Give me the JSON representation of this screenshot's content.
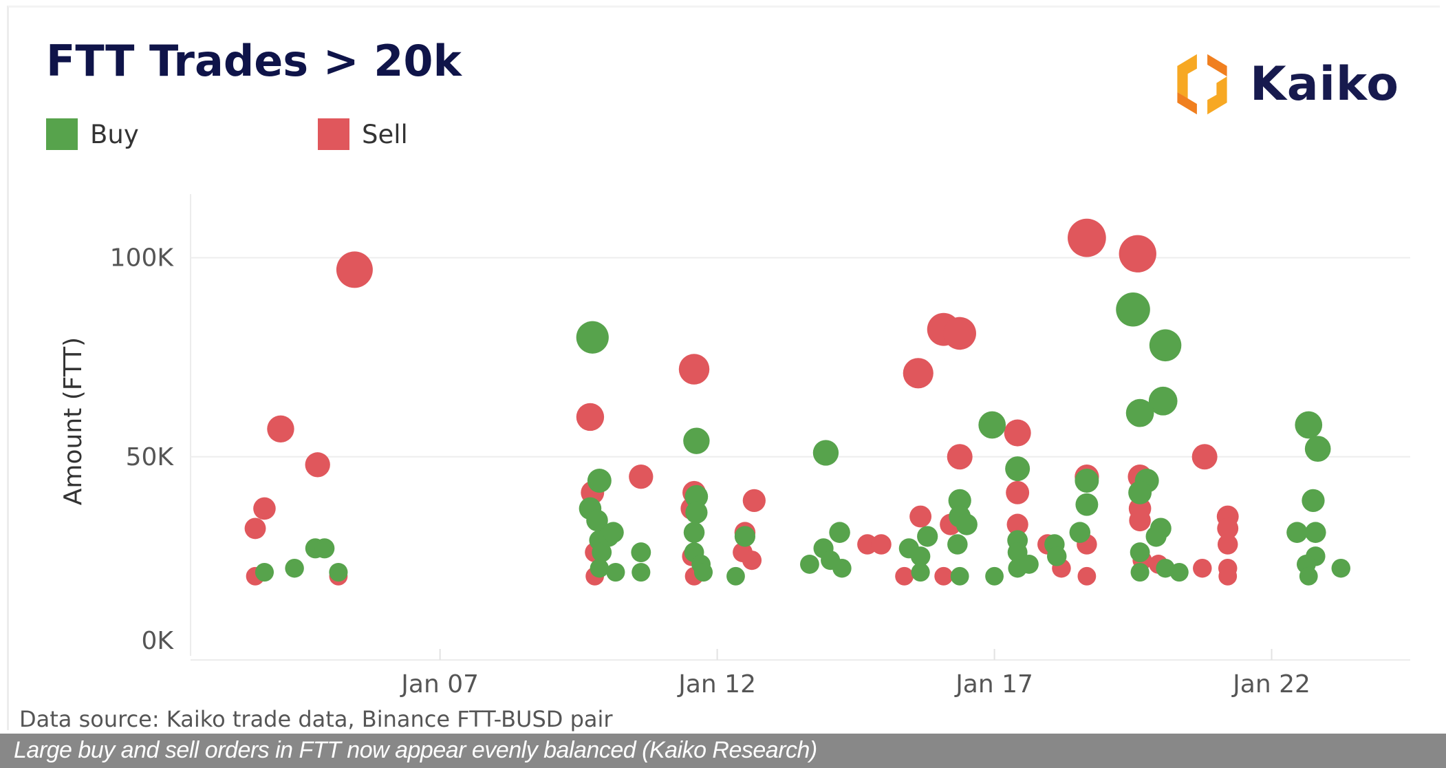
{
  "chart_data": {
    "type": "scatter",
    "title": "FTT Trades > 20k",
    "ylabel": "Amount (FTT)",
    "xlabel": "",
    "xlim": [
      "Jan 02 12:00",
      "Jan 24 12:00"
    ],
    "ylim": [
      0,
      116000
    ],
    "yticks": [
      {
        "value": 0,
        "label": "0K"
      },
      {
        "value": 50000,
        "label": "50K"
      },
      {
        "value": 100000,
        "label": "100K"
      }
    ],
    "xticks": [
      {
        "value": "Jan 07 00:00",
        "label": "Jan 07"
      },
      {
        "value": "Jan 12 00:00",
        "label": "Jan 12"
      },
      {
        "value": "Jan 17 00:00",
        "label": "Jan 17"
      },
      {
        "value": "Jan 22 00:00",
        "label": "Jan 22"
      }
    ],
    "grid": "horizontal",
    "legend_position": "top-left",
    "bubble_size": "scaled by amount",
    "series": [
      {
        "name": "Sell",
        "color": "#e0575c",
        "points": [
          [
            "Jan 05 11:00",
            97000
          ],
          [
            "Jan 04 03:00",
            57000
          ],
          [
            "Jan 04 19:00",
            48000
          ],
          [
            "Jan 03 20:00",
            37000
          ],
          [
            "Jan 03 16:00",
            32000
          ],
          [
            "Jan 03 16:00",
            20000
          ],
          [
            "Jan 05 04:00",
            20000
          ],
          [
            "Jan 09 17:00",
            60000
          ],
          [
            "Jan 09 18:00",
            41000
          ],
          [
            "Jan 09 19:00",
            26000
          ],
          [
            "Jan 09 19:00",
            20000
          ],
          [
            "Jan 10 15:00",
            45000
          ],
          [
            "Jan 11 14:00",
            72000
          ],
          [
            "Jan 11 14:00",
            41000
          ],
          [
            "Jan 11 13:00",
            37000
          ],
          [
            "Jan 11 13:00",
            25000
          ],
          [
            "Jan 11 14:00",
            20000
          ],
          [
            "Jan 12 16:00",
            39000
          ],
          [
            "Jan 12 12:00",
            31000
          ],
          [
            "Jan 12 11:00",
            26000
          ],
          [
            "Jan 12 15:00",
            24000
          ],
          [
            "Jan 14 17:00",
            28000
          ],
          [
            "Jan 14 23:00",
            28000
          ],
          [
            "Jan 15 15:00",
            71000
          ],
          [
            "Jan 16 02:00",
            82000
          ],
          [
            "Jan 16 09:00",
            81000
          ],
          [
            "Jan 16 09:00",
            50000
          ],
          [
            "Jan 15 16:00",
            35000
          ],
          [
            "Jan 16 05:00",
            33000
          ],
          [
            "Jan 15 09:00",
            20000
          ],
          [
            "Jan 16 02:00",
            20000
          ],
          [
            "Jan 17 10:00",
            56000
          ],
          [
            "Jan 17 10:00",
            41000
          ],
          [
            "Jan 17 10:00",
            33000
          ],
          [
            "Jan 17 23:00",
            28000
          ],
          [
            "Jan 18 05:00",
            22000
          ],
          [
            "Jan 18 16:00",
            20000
          ],
          [
            "Jan 18 16:00",
            105000
          ],
          [
            "Jan 18 16:00",
            45000
          ],
          [
            "Jan 18 16:00",
            28000
          ],
          [
            "Jan 19 14:00",
            101000
          ],
          [
            "Jan 19 15:00",
            45000
          ],
          [
            "Jan 19 15:00",
            37000
          ],
          [
            "Jan 19 15:00",
            34000
          ],
          [
            "Jan 19 16:00",
            24000
          ],
          [
            "Jan 19 23:00",
            23000
          ],
          [
            "Jan 20 19:00",
            50000
          ],
          [
            "Jan 21 05:00",
            35000
          ],
          [
            "Jan 21 05:00",
            32000
          ],
          [
            "Jan 21 05:00",
            28000
          ],
          [
            "Jan 21 05:00",
            22000
          ],
          [
            "Jan 21 05:00",
            20000
          ],
          [
            "Jan 20 18:00",
            22000
          ]
        ]
      },
      {
        "name": "Buy",
        "color": "#57a34c",
        "points": [
          [
            "Jan 03 20:00",
            21000
          ],
          [
            "Jan 04 09:00",
            22000
          ],
          [
            "Jan 04 18:00",
            27000
          ],
          [
            "Jan 04 22:00",
            27000
          ],
          [
            "Jan 05 04:00",
            21000
          ],
          [
            "Jan 09 18:00",
            80000
          ],
          [
            "Jan 09 21:00",
            44000
          ],
          [
            "Jan 09 17:00",
            37000
          ],
          [
            "Jan 09 20:00",
            34000
          ],
          [
            "Jan 09 21:00",
            29000
          ],
          [
            "Jan 09 22:00",
            26000
          ],
          [
            "Jan 10 01:00",
            30000
          ],
          [
            "Jan 10 03:00",
            31000
          ],
          [
            "Jan 09 21:00",
            22000
          ],
          [
            "Jan 10 04:00",
            21000
          ],
          [
            "Jan 10 15:00",
            26000
          ],
          [
            "Jan 10 15:00",
            21000
          ],
          [
            "Jan 11 15:00",
            54000
          ],
          [
            "Jan 11 15:00",
            40000
          ],
          [
            "Jan 11 15:00",
            36000
          ],
          [
            "Jan 11 14:00",
            31000
          ],
          [
            "Jan 11 14:00",
            26000
          ],
          [
            "Jan 11 17:00",
            23000
          ],
          [
            "Jan 11 18:00",
            21000
          ],
          [
            "Jan 12 08:00",
            20000
          ],
          [
            "Jan 12 12:00",
            30000
          ],
          [
            "Jan 13 23:00",
            51000
          ],
          [
            "Jan 14 05:00",
            31000
          ],
          [
            "Jan 13 22:00",
            27000
          ],
          [
            "Jan 13 16:00",
            23000
          ],
          [
            "Jan 14 01:00",
            24000
          ],
          [
            "Jan 14 06:00",
            22000
          ],
          [
            "Jan 15 19:00",
            30000
          ],
          [
            "Jan 16 09:00",
            39000
          ],
          [
            "Jan 16 09:00",
            35000
          ],
          [
            "Jan 16 12:00",
            33000
          ],
          [
            "Jan 16 08:00",
            28000
          ],
          [
            "Jan 15 11:00",
            27000
          ],
          [
            "Jan 15 16:00",
            25000
          ],
          [
            "Jan 15 16:00",
            21000
          ],
          [
            "Jan 16 09:00",
            20000
          ],
          [
            "Jan 16 23:00",
            58000
          ],
          [
            "Jan 17 10:00",
            47000
          ],
          [
            "Jan 17 10:00",
            29000
          ],
          [
            "Jan 17 10:00",
            26000
          ],
          [
            "Jan 17 10:00",
            22000
          ],
          [
            "Jan 17 15:00",
            23000
          ],
          [
            "Jan 17 00:00",
            20000
          ],
          [
            "Jan 18 02:00",
            28000
          ],
          [
            "Jan 18 03:00",
            25000
          ],
          [
            "Jan 18 16:00",
            44000
          ],
          [
            "Jan 18 16:00",
            38000
          ],
          [
            "Jan 18 13:00",
            31000
          ],
          [
            "Jan 19 12:00",
            87000
          ],
          [
            "Jan 20 02:00",
            78000
          ],
          [
            "Jan 20 01:00",
            64000
          ],
          [
            "Jan 19 15:00",
            61000
          ],
          [
            "Jan 19 18:00",
            44000
          ],
          [
            "Jan 19 15:00",
            41000
          ],
          [
            "Jan 20 00:00",
            32000
          ],
          [
            "Jan 19 22:00",
            30000
          ],
          [
            "Jan 19 15:00",
            26000
          ],
          [
            "Jan 19 15:00",
            21000
          ],
          [
            "Jan 20 02:00",
            22000
          ],
          [
            "Jan 20 08:00",
            21000
          ],
          [
            "Jan 22 16:00",
            58000
          ],
          [
            "Jan 22 20:00",
            52000
          ],
          [
            "Jan 22 18:00",
            39000
          ],
          [
            "Jan 22 11:00",
            31000
          ],
          [
            "Jan 22 19:00",
            31000
          ],
          [
            "Jan 22 19:00",
            25000
          ],
          [
            "Jan 22 15:00",
            23000
          ],
          [
            "Jan 22 16:00",
            20000
          ],
          [
            "Jan 23 06:00",
            22000
          ]
        ]
      }
    ]
  },
  "legend": {
    "buy_label": "Buy",
    "sell_label": "Sell",
    "buy_color": "#57a34c",
    "sell_color": "#e0575c"
  },
  "logo": {
    "text": "Kaiko",
    "icon": "kaiko-hexagon-logo",
    "colors": [
      "#f7a823",
      "#f07f1f"
    ]
  },
  "source": "Data source: Kaiko trade data, Binance FTT-BUSD pair",
  "caption": "Large buy and sell orders in FTT now appear evenly balanced (Kaiko Research)"
}
